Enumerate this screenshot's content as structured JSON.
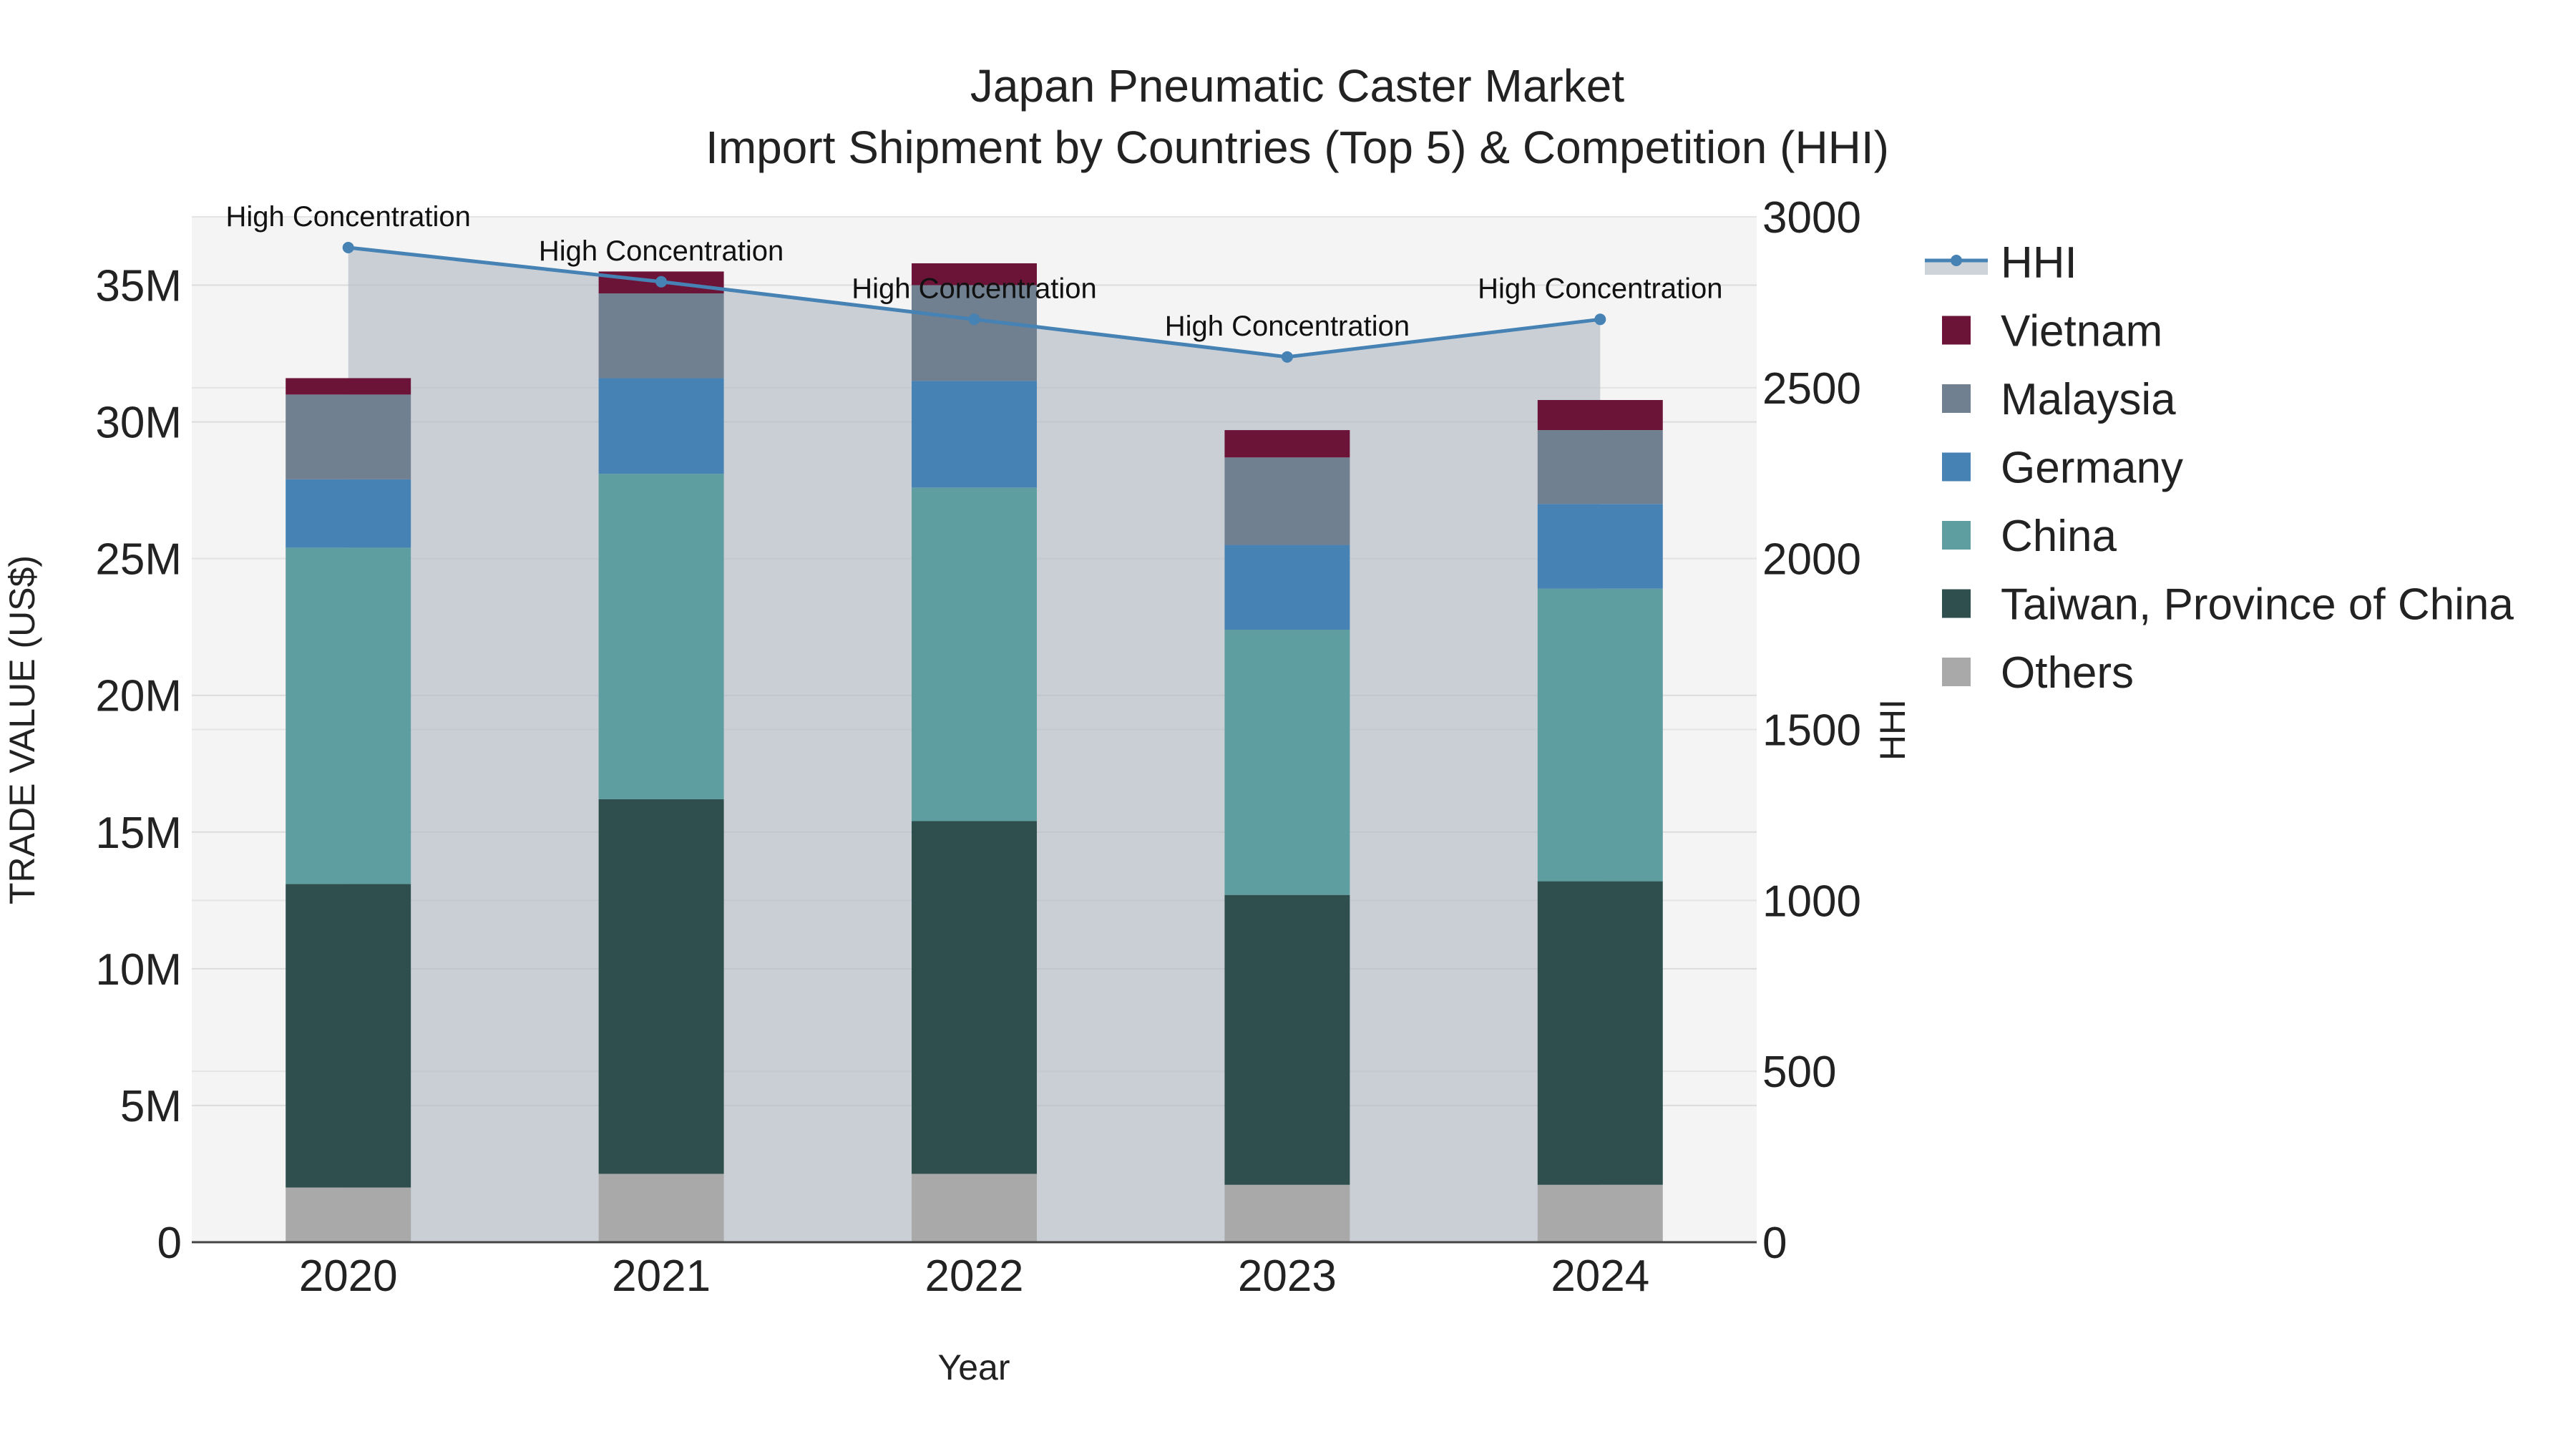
{
  "chart_data": {
    "type": "bar",
    "title_line1": "Japan Pneumatic Caster Market",
    "title_line2": "Import Shipment by Countries (Top 5) & Competition (HHI)",
    "xlabel": "Year",
    "ylabel": "TRADE VALUE (US$)",
    "y2label": "HHI",
    "categories": [
      "2020",
      "2021",
      "2022",
      "2023",
      "2024"
    ],
    "ylim": [
      0,
      37500000
    ],
    "y2lim": [
      0,
      3000
    ],
    "y_ticks": [
      0,
      5000000,
      10000000,
      15000000,
      20000000,
      25000000,
      30000000,
      35000000
    ],
    "y_tick_labels": [
      "0",
      "5M",
      "10M",
      "15M",
      "20M",
      "25M",
      "30M",
      "35M"
    ],
    "y2_ticks": [
      0,
      500,
      1000,
      1500,
      2000,
      2500,
      3000
    ],
    "y2_tick_labels": [
      "0",
      "500",
      "1000",
      "1500",
      "2000",
      "2500",
      "3000"
    ],
    "series": [
      {
        "name": "Others",
        "color": "#a9a9a9",
        "values": [
          2000000,
          2500000,
          2500000,
          2100000,
          2100000
        ]
      },
      {
        "name": "Taiwan, Province of China",
        "color": "#2f4f4f",
        "values": [
          11100000,
          13700000,
          12900000,
          10600000,
          11100000
        ]
      },
      {
        "name": "China",
        "color": "#5f9ea0",
        "values": [
          12300000,
          11900000,
          12200000,
          9700000,
          10700000
        ]
      },
      {
        "name": "Germany",
        "color": "#4682b4",
        "values": [
          2500000,
          3500000,
          3900000,
          3100000,
          3100000
        ]
      },
      {
        "name": "Malaysia",
        "color": "#708090",
        "values": [
          3100000,
          3100000,
          3500000,
          3200000,
          2700000
        ]
      },
      {
        "name": "Vietnam",
        "color": "#6b1438",
        "values": [
          600000,
          800000,
          800000,
          1000000,
          1100000
        ]
      }
    ],
    "hhi": {
      "name": "HHI",
      "color": "#4682b4",
      "values": [
        2910,
        2810,
        2700,
        2590,
        2700
      ],
      "annotations": [
        "High Concentration",
        "High Concentration",
        "High Concentration",
        "High Concentration",
        "High Concentration"
      ]
    },
    "legend_order": [
      "HHI",
      "Vietnam",
      "Malaysia",
      "Germany",
      "China",
      "Taiwan, Province of China",
      "Others"
    ],
    "legend_position": "right"
  }
}
